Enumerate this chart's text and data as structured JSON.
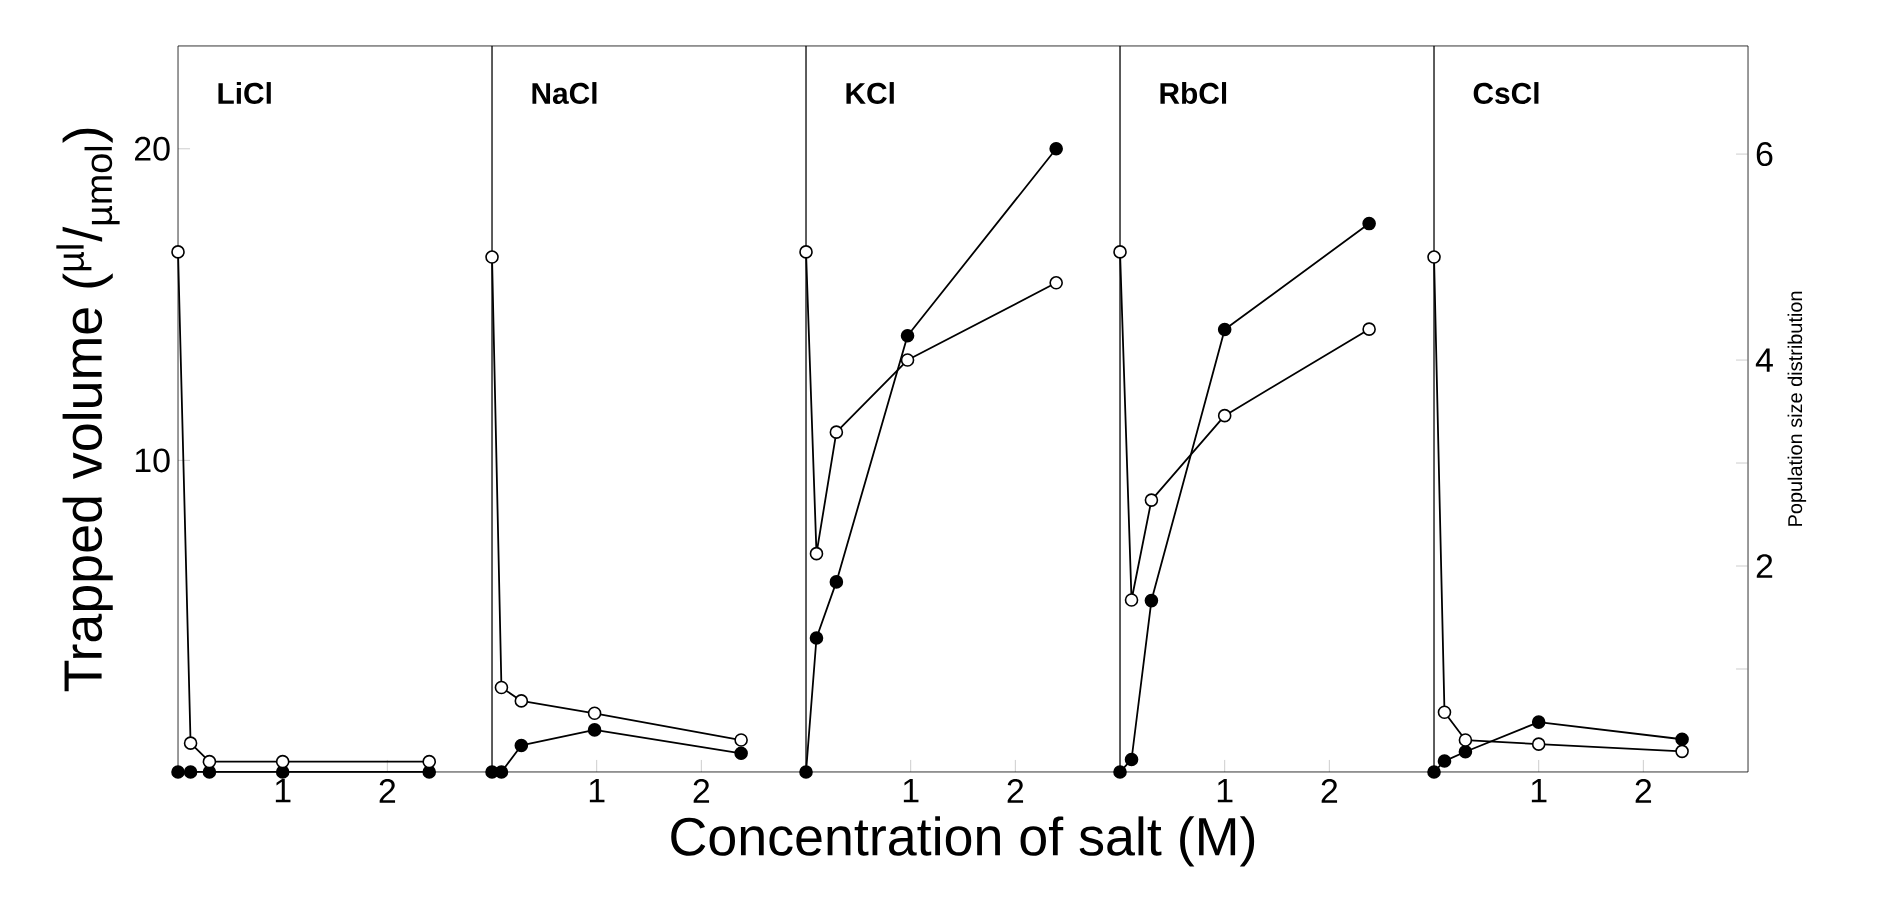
{
  "chart_data": [
    {
      "type": "line",
      "title": "LiCl",
      "ylabel": "Trapped volume ($^{µl}$/$_{µmol}$)",
      "x": [
        0,
        0.12,
        0.3,
        1.0,
        2.4
      ],
      "xlim": [
        0,
        3
      ],
      "xticks": [
        1,
        2
      ],
      "ylim": [
        0,
        23.3
      ],
      "yticks": [
        10,
        20
      ],
      "y2lim": [
        0,
        7.05
      ],
      "tick_labels": "xy",
      "marker": "circle",
      "line_style": "solid",
      "series": [
        {
          "color": "#000000",
          "values": [
            0,
            0,
            0,
            0,
            0
          ]
        },
        {
          "color": "#ffffff",
          "axis": "y2",
          "values": [
            5.05,
            0.28,
            0.1,
            0.1,
            0.1
          ]
        }
      ]
    },
    {
      "type": "line",
      "title": "NaCl",
      "x": [
        0,
        0.09,
        0.28,
        0.98,
        2.38
      ],
      "xlim": [
        0,
        3
      ],
      "xticks": [
        1,
        2
      ],
      "ylim": [
        0,
        23.3
      ],
      "y2lim": [
        0,
        7.05
      ],
      "tick_labels": "x",
      "marker": "circle",
      "line_style": "solid",
      "series": [
        {
          "color": "#000000",
          "values": [
            0,
            0,
            0.85,
            1.35,
            0.6
          ]
        },
        {
          "color": "#ffffff",
          "axis": "y2",
          "values": [
            5.0,
            0.82,
            0.69,
            0.57,
            0.31
          ]
        }
      ]
    },
    {
      "type": "line",
      "title": "KCl",
      "xlabel": "Concentration  of  salt  (M)",
      "x": [
        0,
        0.1,
        0.29,
        0.97,
        2.39
      ],
      "xlim": [
        0,
        3
      ],
      "xticks": [
        1,
        2
      ],
      "ylim": [
        0,
        23.3
      ],
      "y2lim": [
        0,
        7.05
      ],
      "tick_labels": "x",
      "marker": "circle",
      "line_style": "solid",
      "series": [
        {
          "color": "#000000",
          "values": [
            0,
            4.3,
            6.1,
            14.0,
            20.0
          ]
        },
        {
          "color": "#ffffff",
          "axis": "y2",
          "values": [
            5.05,
            2.12,
            3.3,
            4.0,
            4.75
          ]
        }
      ]
    },
    {
      "type": "line",
      "title": "RbCl",
      "x": [
        0,
        0.11,
        0.3,
        1.0,
        2.38
      ],
      "xlim": [
        0,
        3
      ],
      "xticks": [
        1,
        2
      ],
      "ylim": [
        0,
        23.3
      ],
      "y2lim": [
        0,
        7.05
      ],
      "tick_labels": "x",
      "marker": "circle",
      "line_style": "solid",
      "series": [
        {
          "color": "#000000",
          "values": [
            0,
            0.4,
            5.5,
            14.2,
            17.6
          ]
        },
        {
          "color": "#ffffff",
          "axis": "y2",
          "values": [
            5.05,
            1.67,
            2.64,
            3.46,
            4.3
          ]
        }
      ]
    },
    {
      "type": "line",
      "title": "CsCl",
      "y2label": "Population size distribution",
      "x": [
        0,
        0.1,
        0.3,
        1.0,
        2.37
      ],
      "xlim": [
        0,
        3
      ],
      "xticks": [
        1,
        2
      ],
      "ylim": [
        0,
        23.3
      ],
      "y2lim": [
        0,
        7.05
      ],
      "y2ticks": [
        {
          "value": 1,
          "label": null
        },
        2,
        {
          "value": 3,
          "label": null
        },
        4,
        6
      ],
      "tick_labels": "xy2",
      "marker": "circle",
      "line_style": "solid",
      "series": [
        {
          "color": "#000000",
          "values": [
            0,
            0.35,
            0.65,
            1.6,
            1.05
          ]
        },
        {
          "color": "#ffffff",
          "axis": "y2",
          "values": [
            5.0,
            0.58,
            0.31,
            0.27,
            0.2
          ]
        }
      ]
    }
  ]
}
